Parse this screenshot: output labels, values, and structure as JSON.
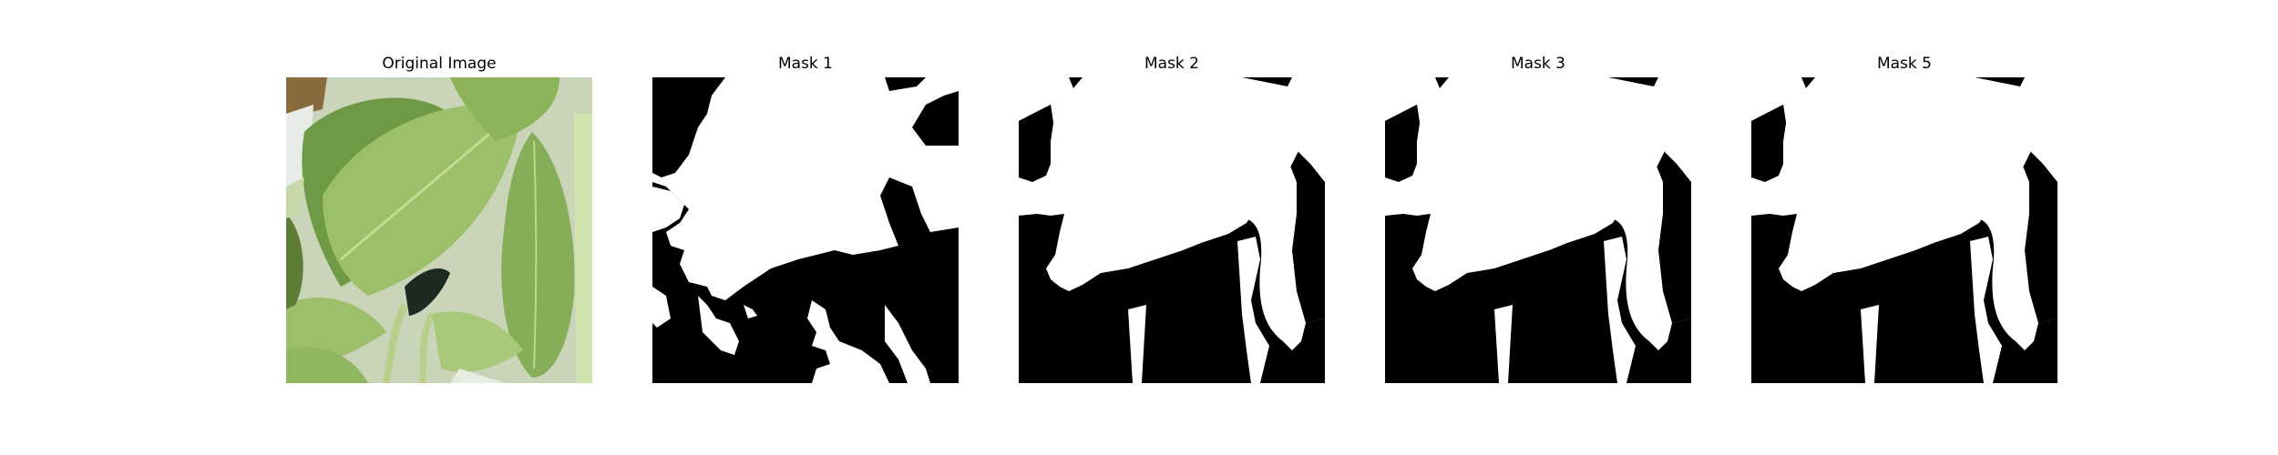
{
  "figure": {
    "panels": [
      {
        "id": "original",
        "title": "Original Image",
        "kind": "photo"
      },
      {
        "id": "mask1",
        "title": "Mask 1",
        "kind": "mask"
      },
      {
        "id": "mask2",
        "title": "Mask 2",
        "kind": "mask"
      },
      {
        "id": "mask3",
        "title": "Mask 3",
        "kind": "mask"
      },
      {
        "id": "mask5",
        "title": "Mask 5",
        "kind": "mask"
      }
    ]
  },
  "colors": {
    "background": "#ffffff",
    "mask_foreground": "#ffffff",
    "mask_background": "#000000",
    "leaf_light": "#9cc06a",
    "leaf_mid": "#7fa04c",
    "leaf_dark": "#5d7d37",
    "stem": "#b8cf8a",
    "shadow": "#1c2a22"
  }
}
